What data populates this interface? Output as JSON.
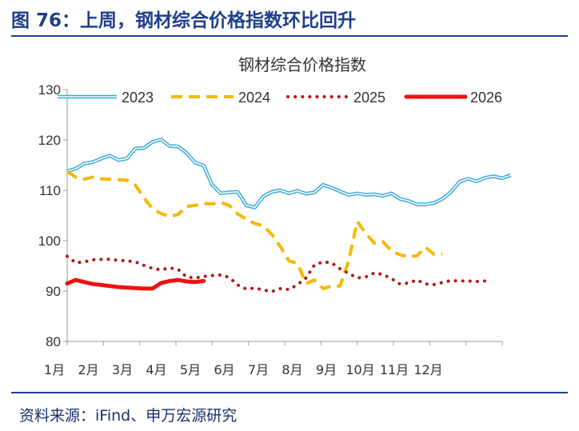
{
  "figure_title": "图 76：上周，钢材综合价格指数环比回升",
  "source": "资料来源：iFind、申万宏源研究",
  "colors": {
    "heading": "#1f3f8c",
    "s2023": "#3aa6d8",
    "s2024": "#f5b800",
    "s2025": "#b01818",
    "s2026": "#ee1111"
  },
  "chart_data": {
    "type": "line",
    "title": "钢材综合价格指数",
    "x_categories": [
      "1月",
      "2月",
      "3月",
      "4月",
      "5月",
      "6月",
      "7月",
      "8月",
      "9月",
      "10月",
      "11月",
      "12月"
    ],
    "ylim": [
      80,
      130
    ],
    "y_ticks": [
      "80",
      "90",
      "100",
      "110",
      "120",
      "130"
    ],
    "grid": false,
    "legend_position": "top",
    "x_range_weeks": [
      1,
      52
    ],
    "series": [
      {
        "name": "2023",
        "style": "double-line",
        "color": "#3aa6d8",
        "points": [
          [
            1,
            113.8
          ],
          [
            2,
            114.3
          ],
          [
            3,
            115.3
          ],
          [
            4,
            115.6
          ],
          [
            5,
            116.3
          ],
          [
            6,
            116.9
          ],
          [
            7,
            116.0
          ],
          [
            8,
            116.3
          ],
          [
            9,
            118.3
          ],
          [
            10,
            118.4
          ],
          [
            11,
            119.6
          ],
          [
            12,
            120.1
          ],
          [
            13,
            118.8
          ],
          [
            14,
            118.7
          ],
          [
            15,
            117.4
          ],
          [
            16,
            115.5
          ],
          [
            17,
            114.9
          ],
          [
            18,
            111.1
          ],
          [
            19,
            109.4
          ],
          [
            20,
            109.6
          ],
          [
            21,
            109.7
          ],
          [
            22,
            107.0
          ],
          [
            23,
            106.6
          ],
          [
            24,
            108.8
          ],
          [
            25,
            109.7
          ],
          [
            26,
            110.0
          ],
          [
            27,
            109.4
          ],
          [
            28,
            109.9
          ],
          [
            29,
            109.3
          ],
          [
            30,
            109.6
          ],
          [
            31,
            111.1
          ],
          [
            32,
            110.5
          ],
          [
            33,
            109.8
          ],
          [
            34,
            109.1
          ],
          [
            35,
            109.4
          ],
          [
            36,
            109.1
          ],
          [
            37,
            109.2
          ],
          [
            38,
            108.9
          ],
          [
            39,
            109.4
          ],
          [
            40,
            108.3
          ],
          [
            41,
            107.9
          ],
          [
            42,
            107.2
          ],
          [
            43,
            107.2
          ],
          [
            44,
            107.5
          ],
          [
            45,
            108.3
          ],
          [
            46,
            109.7
          ],
          [
            47,
            111.7
          ],
          [
            48,
            112.3
          ],
          [
            49,
            111.8
          ],
          [
            50,
            112.5
          ],
          [
            51,
            112.8
          ],
          [
            52,
            112.4
          ],
          [
            53,
            113.0
          ]
        ]
      },
      {
        "name": "2024",
        "style": "dashed",
        "color": "#f5b800",
        "points": [
          [
            1,
            113.7
          ],
          [
            2,
            112.6
          ],
          [
            3,
            112.2
          ],
          [
            4,
            112.6
          ],
          [
            5,
            112.3
          ],
          [
            6,
            112.2
          ],
          [
            7,
            112.1
          ],
          [
            8,
            112.0
          ],
          [
            9,
            111.0
          ],
          [
            10,
            108.5
          ],
          [
            11,
            106.3
          ],
          [
            12,
            105.4
          ],
          [
            13,
            104.8
          ],
          [
            14,
            105.2
          ],
          [
            15,
            106.8
          ],
          [
            16,
            107.0
          ],
          [
            17,
            107.4
          ],
          [
            18,
            107.3
          ],
          [
            19,
            107.6
          ],
          [
            20,
            107.0
          ],
          [
            21,
            105.3
          ],
          [
            22,
            104.3
          ],
          [
            23,
            103.4
          ],
          [
            24,
            103.0
          ],
          [
            25,
            101.2
          ],
          [
            26,
            98.8
          ],
          [
            27,
            96.0
          ],
          [
            28,
            95.5
          ],
          [
            29,
            91.5
          ],
          [
            30,
            92.2
          ],
          [
            31,
            90.5
          ],
          [
            32,
            91.0
          ],
          [
            33,
            91.0
          ],
          [
            34,
            96.0
          ],
          [
            35,
            103.8
          ],
          [
            36,
            101.5
          ],
          [
            37,
            99.5
          ],
          [
            38,
            99.8
          ],
          [
            39,
            98.0
          ],
          [
            40,
            97.2
          ],
          [
            41,
            96.8
          ],
          [
            42,
            97.0
          ],
          [
            43,
            98.7
          ],
          [
            44,
            97.3
          ],
          [
            45,
            97.4
          ]
        ]
      },
      {
        "name": "2025",
        "style": "dotted",
        "color": "#b01818",
        "points": [
          [
            1,
            96.9
          ],
          [
            2,
            95.6
          ],
          [
            3,
            95.8
          ],
          [
            4,
            96.2
          ],
          [
            5,
            96.3
          ],
          [
            6,
            96.3
          ],
          [
            7,
            96.1
          ],
          [
            8,
            96.0
          ],
          [
            9,
            95.8
          ],
          [
            10,
            95.1
          ],
          [
            11,
            94.5
          ],
          [
            12,
            94.2
          ],
          [
            13,
            94.6
          ],
          [
            14,
            94.3
          ],
          [
            15,
            92.8
          ],
          [
            16,
            92.6
          ],
          [
            17,
            92.9
          ],
          [
            18,
            93.1
          ],
          [
            19,
            93.2
          ],
          [
            20,
            92.7
          ],
          [
            21,
            91.2
          ],
          [
            22,
            90.4
          ],
          [
            23,
            90.6
          ],
          [
            24,
            90.2
          ],
          [
            25,
            89.9
          ],
          [
            26,
            90.5
          ],
          [
            27,
            90.3
          ],
          [
            28,
            91.3
          ],
          [
            29,
            92.6
          ],
          [
            30,
            95.2
          ],
          [
            31,
            95.8
          ],
          [
            32,
            95.6
          ],
          [
            33,
            94.4
          ],
          [
            34,
            93.5
          ],
          [
            35,
            92.6
          ],
          [
            36,
            92.8
          ],
          [
            37,
            93.6
          ],
          [
            38,
            93.3
          ],
          [
            39,
            92.5
          ],
          [
            40,
            91.4
          ],
          [
            41,
            91.6
          ],
          [
            42,
            92.2
          ],
          [
            43,
            91.4
          ],
          [
            44,
            91.3
          ],
          [
            45,
            91.7
          ],
          [
            46,
            92.1
          ],
          [
            47,
            92.0
          ],
          [
            48,
            92.0
          ],
          [
            49,
            91.9
          ],
          [
            50,
            92.0
          ]
        ]
      },
      {
        "name": "2026",
        "style": "thick",
        "color": "#ee1111",
        "points": [
          [
            1,
            91.5
          ],
          [
            2,
            92.2
          ],
          [
            3,
            91.8
          ],
          [
            4,
            91.4
          ],
          [
            5,
            91.2
          ],
          [
            6,
            91.0
          ],
          [
            7,
            90.8
          ],
          [
            8,
            90.7
          ],
          [
            9,
            90.6
          ],
          [
            10,
            90.5
          ],
          [
            11,
            90.5
          ],
          [
            12,
            91.6
          ],
          [
            13,
            92.0
          ],
          [
            14,
            92.2
          ],
          [
            15,
            91.9
          ],
          [
            16,
            91.8
          ],
          [
            17,
            92.0
          ]
        ]
      }
    ]
  }
}
